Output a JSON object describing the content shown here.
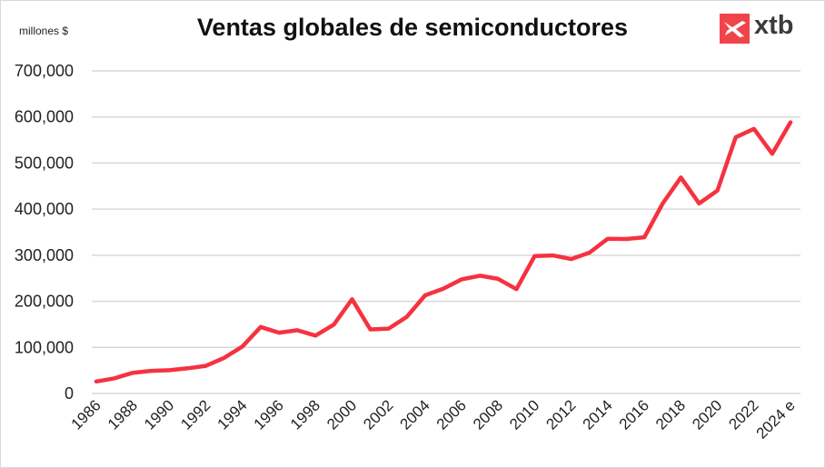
{
  "chart_data": {
    "type": "line",
    "title": "Ventas globales de semiconductores",
    "ylabel": "millones $",
    "xlabel": "",
    "ylim": [
      0,
      700000
    ],
    "yticks": [
      "0",
      "100,000",
      "200,000",
      "300,000",
      "400,000",
      "500,000",
      "600,000",
      "700,000"
    ],
    "grid": true,
    "categories": [
      "1986",
      "1987",
      "1988",
      "1989",
      "1990",
      "1991",
      "1992",
      "1993",
      "1994",
      "1995",
      "1996",
      "1997",
      "1998",
      "1999",
      "2000",
      "2001",
      "2002",
      "2003",
      "2004",
      "2005",
      "2006",
      "2007",
      "2008",
      "2009",
      "2010",
      "2011",
      "2012",
      "2013",
      "2014",
      "2015",
      "2016",
      "2017",
      "2018",
      "2019",
      "2020",
      "2021",
      "2022",
      "2023",
      "2024 e"
    ],
    "tick_labels": [
      "1986",
      "1988",
      "1990",
      "1992",
      "1994",
      "1996",
      "1998",
      "2000",
      "2002",
      "2004",
      "2006",
      "2008",
      "2010",
      "2012",
      "2014",
      "2016",
      "2018",
      "2020",
      "2022",
      "2024 e"
    ],
    "series": [
      {
        "color": "#f53240",
        "values": [
          26000,
          33000,
          45000,
          49000,
          50500,
          54600,
          59900,
          77300,
          101900,
          144400,
          132000,
          137200,
          125600,
          149400,
          204400,
          139000,
          140700,
          166400,
          213000,
          227500,
          247700,
          255600,
          248600,
          226300,
          298300,
          299500,
          291600,
          305600,
          335800,
          335200,
          338900,
          412200,
          468800,
          412300,
          440400,
          555900,
          574100,
          520100,
          588400
        ]
      }
    ]
  },
  "logo": {
    "text": "xtb",
    "color": "#f1444a"
  }
}
